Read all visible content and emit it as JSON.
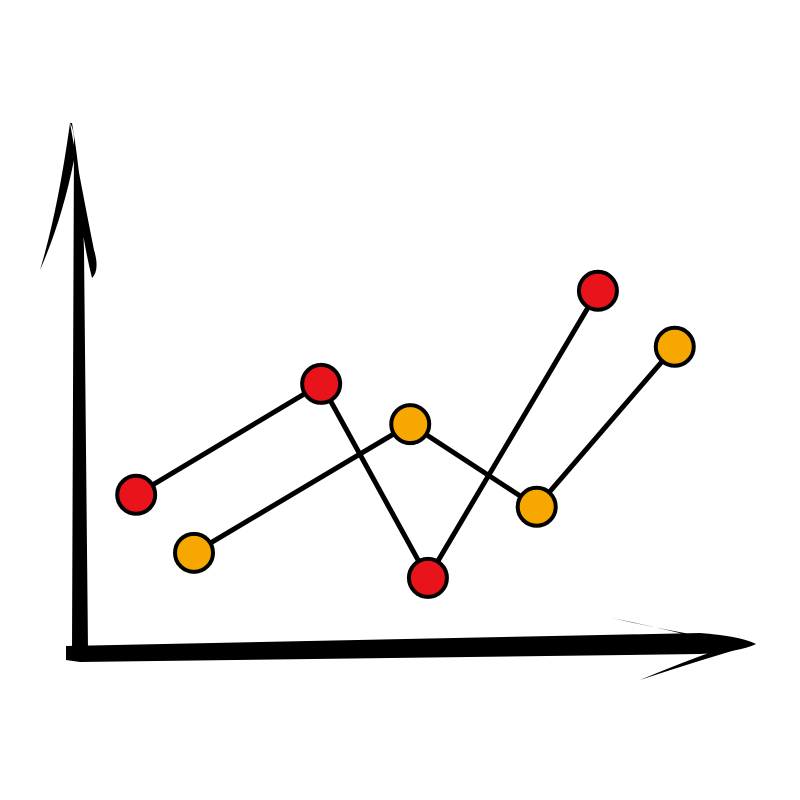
{
  "chart_data": {
    "type": "line",
    "xlim": [
      0,
      100
    ],
    "ylim": [
      0,
      100
    ],
    "series": [
      {
        "color": "#e8131b",
        "x": [
          9,
          36.2,
          51.9,
          76.9
        ],
        "values": [
          29.3,
          50.5,
          13.4,
          68.3
        ]
      },
      {
        "color": "#f6a800",
        "x": [
          17.5,
          49.3,
          67.9,
          88.2
        ],
        "values": [
          18.2,
          42.8,
          27,
          57.6
        ]
      }
    ]
  }
}
